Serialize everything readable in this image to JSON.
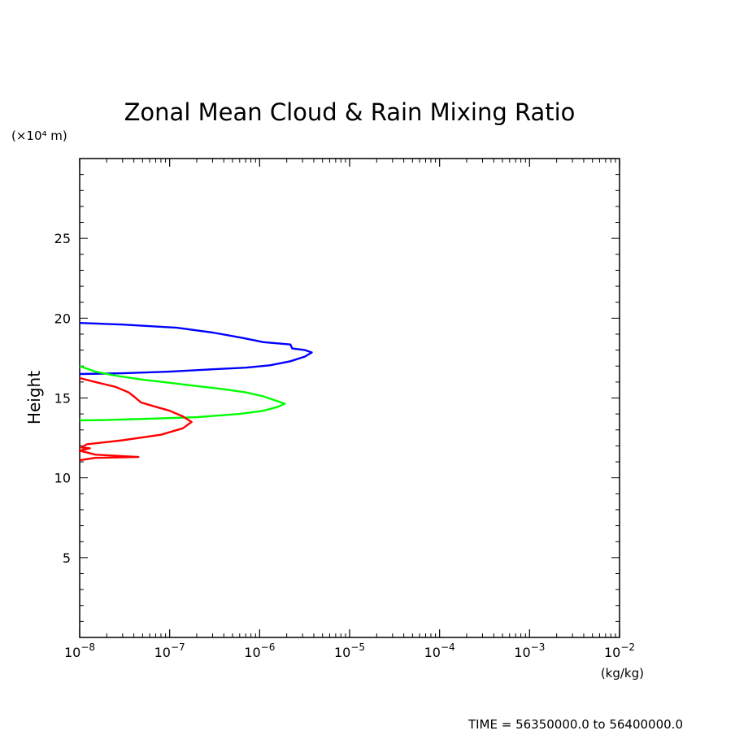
{
  "chart_data": {
    "type": "line",
    "title": "Zonal Mean Cloud & Rain Mixing Ratio",
    "ylabel": "Height",
    "yunit": "(×10⁴ m)",
    "xunit": "(kg/kg)",
    "footer": "TIME = 56350000.0 to 56400000.0",
    "xscale": "log",
    "xlim": [
      1e-08,
      0.01
    ],
    "ylim": [
      0,
      30
    ],
    "xticks": [
      {
        "value": 1e-08,
        "base": "10",
        "exp": "−8"
      },
      {
        "value": 1e-07,
        "base": "10",
        "exp": "−7"
      },
      {
        "value": 1e-06,
        "base": "10",
        "exp": "−6"
      },
      {
        "value": 1e-05,
        "base": "10",
        "exp": "−5"
      },
      {
        "value": 0.0001,
        "base": "10",
        "exp": "−4"
      },
      {
        "value": 0.001,
        "base": "10",
        "exp": "−3"
      },
      {
        "value": 0.01,
        "base": "10",
        "exp": "−2"
      }
    ],
    "yticks": [
      {
        "value": 5,
        "label": "5"
      },
      {
        "value": 10,
        "label": "10"
      },
      {
        "value": 15,
        "label": "15"
      },
      {
        "value": 20,
        "label": "20"
      },
      {
        "value": 25,
        "label": "25"
      }
    ],
    "grid": false,
    "series": [
      {
        "color": "#0000ff",
        "points": [
          [
            1e-08,
            19.7
          ],
          [
            3e-08,
            19.6
          ],
          [
            1.2e-07,
            19.4
          ],
          [
            3e-07,
            19.1
          ],
          [
            6e-07,
            18.8
          ],
          [
            9e-07,
            18.6
          ],
          [
            1.1e-06,
            18.5
          ],
          [
            2.2e-06,
            18.35
          ],
          [
            2.3e-06,
            18.1
          ],
          [
            3.2e-06,
            18.0
          ],
          [
            3.8e-06,
            17.85
          ],
          [
            3.2e-06,
            17.6
          ],
          [
            2.2e-06,
            17.3
          ],
          [
            1.3e-06,
            17.05
          ],
          [
            7e-07,
            16.9
          ],
          [
            3e-07,
            16.8
          ],
          [
            1e-07,
            16.65
          ],
          [
            3e-08,
            16.55
          ],
          [
            1e-08,
            16.5
          ]
        ]
      },
      {
        "color": "#00ff00",
        "points": [
          [
            1e-08,
            17.0
          ],
          [
            1.5e-08,
            16.65
          ],
          [
            2.5e-08,
            16.4
          ],
          [
            5e-08,
            16.15
          ],
          [
            1e-07,
            15.95
          ],
          [
            2e-07,
            15.75
          ],
          [
            4e-07,
            15.55
          ],
          [
            7e-07,
            15.35
          ],
          [
            1.1e-06,
            15.1
          ],
          [
            1.4e-06,
            14.9
          ],
          [
            1.9e-06,
            14.65
          ],
          [
            1.6e-06,
            14.45
          ],
          [
            1.1e-06,
            14.2
          ],
          [
            6e-07,
            14.0
          ],
          [
            2e-07,
            13.8
          ],
          [
            6e-08,
            13.7
          ],
          [
            2e-08,
            13.62
          ],
          [
            1e-08,
            13.6
          ]
        ]
      },
      {
        "color": "#ff0000",
        "points": [
          [
            1e-08,
            16.25
          ],
          [
            1.5e-08,
            16.0
          ],
          [
            2.5e-08,
            15.7
          ],
          [
            3.5e-08,
            15.35
          ],
          [
            4.2e-08,
            15.0
          ],
          [
            4.8e-08,
            14.72
          ],
          [
            7e-08,
            14.45
          ],
          [
            1e-07,
            14.2
          ],
          [
            1.4e-07,
            13.85
          ],
          [
            1.75e-07,
            13.5
          ],
          [
            1.4e-07,
            13.1
          ],
          [
            8e-08,
            12.7
          ],
          [
            3e-08,
            12.35
          ],
          [
            1.2e-08,
            12.1
          ],
          [
            1.05e-08,
            11.9
          ],
          [
            1.3e-08,
            11.85
          ],
          [
            1e-08,
            11.7
          ],
          [
            1.5e-08,
            11.45
          ],
          [
            4.5e-08,
            11.3
          ],
          [
            1.5e-08,
            11.25
          ],
          [
            1e-08,
            11.1
          ]
        ]
      }
    ]
  }
}
